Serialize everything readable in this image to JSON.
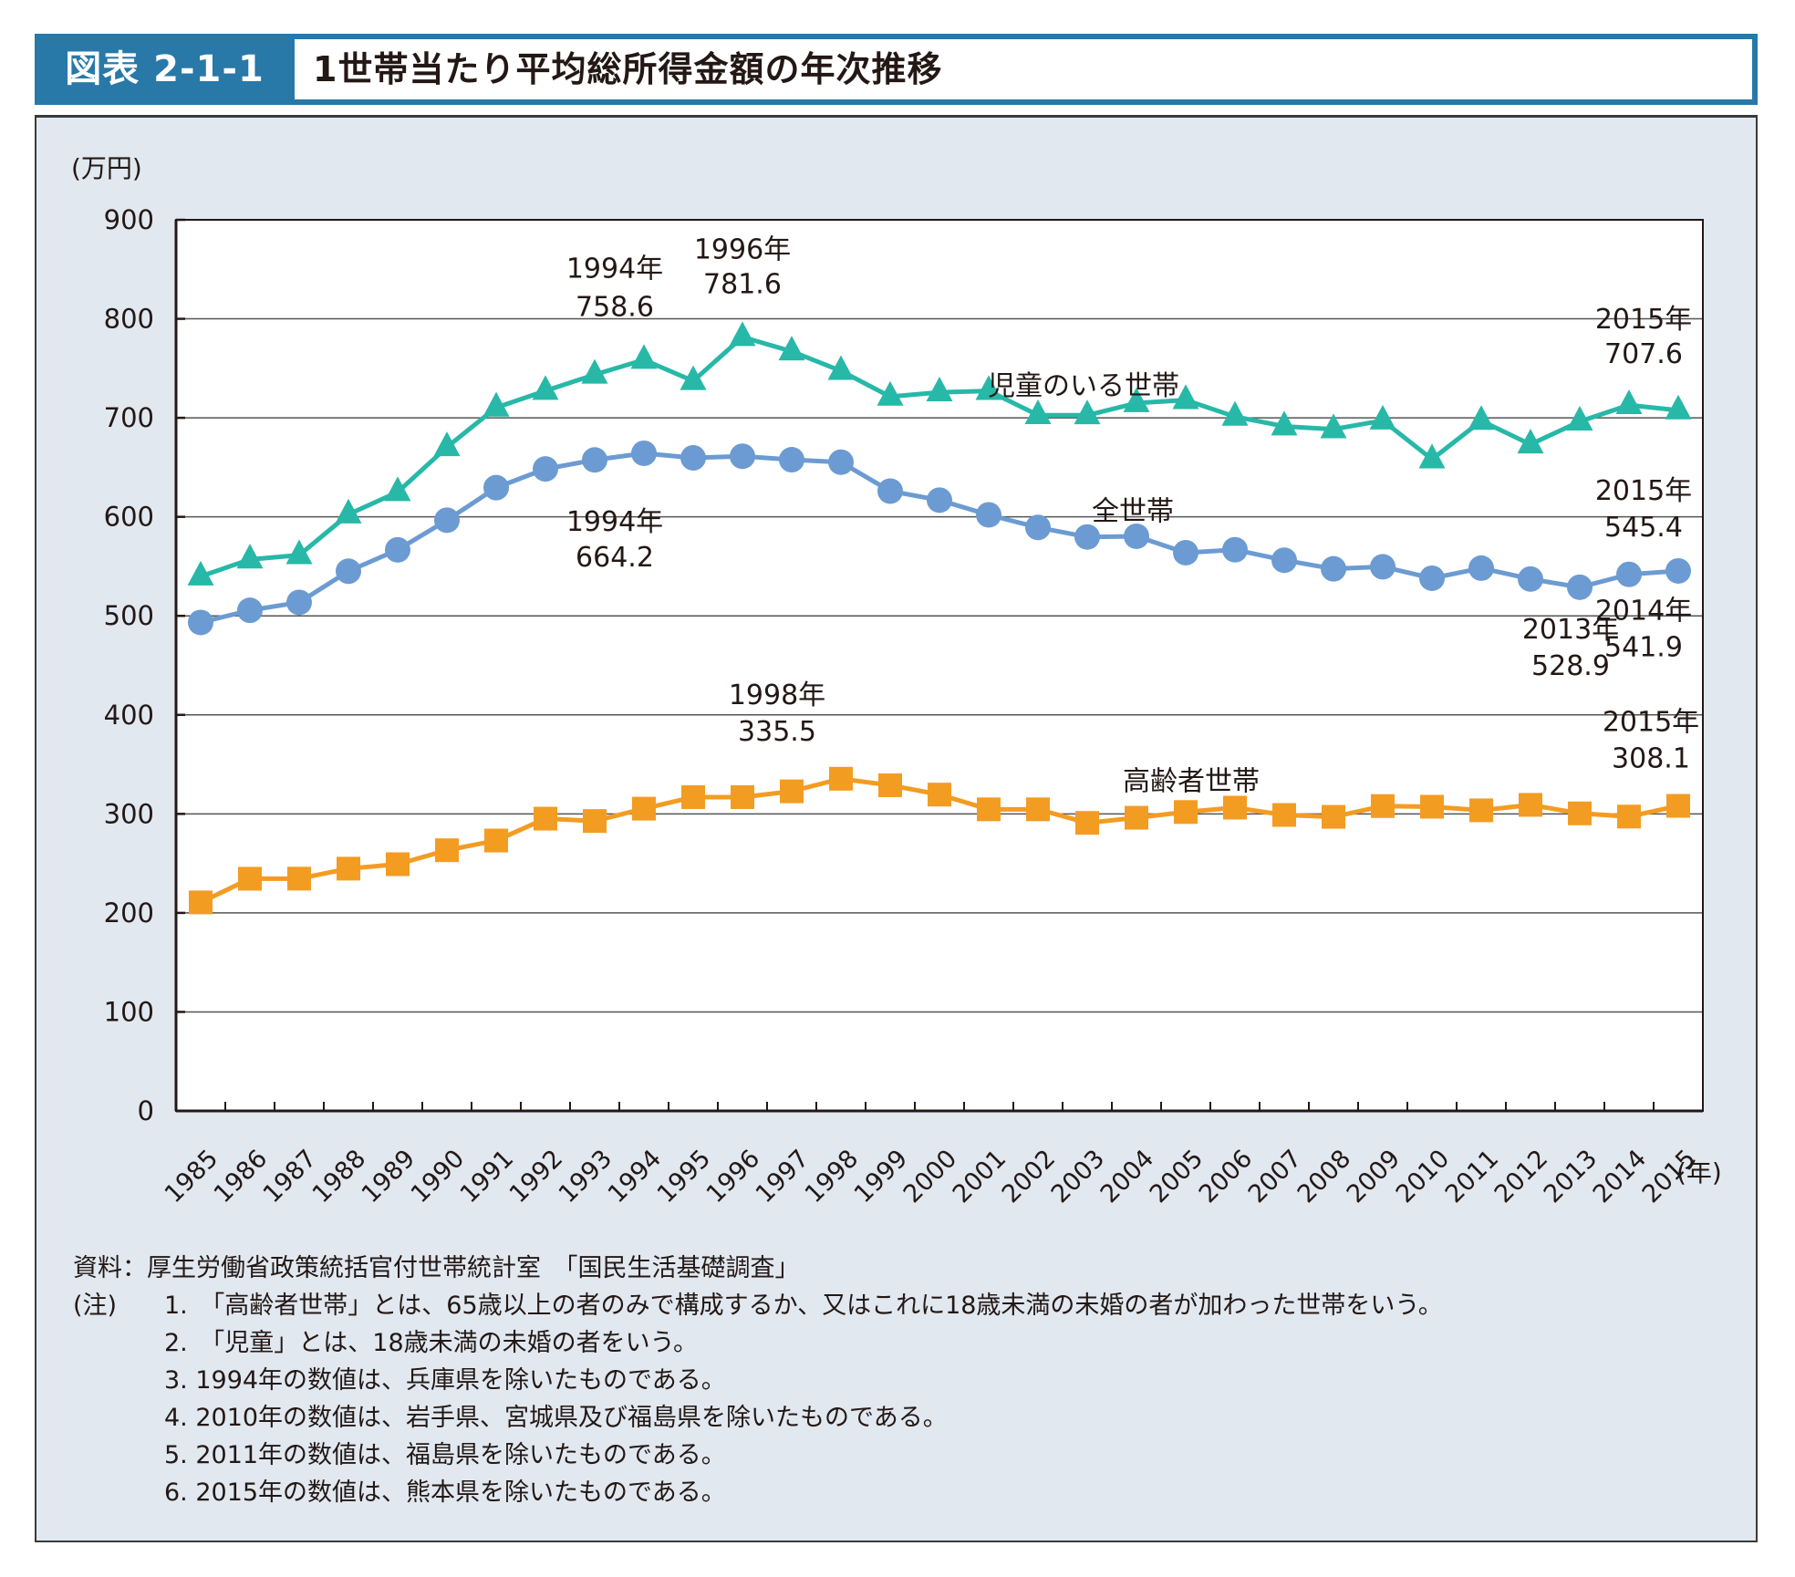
{
  "header": {
    "figure_label": "図表 2-1-1",
    "title": "1世帯当たり平均総所得金額の年次推移"
  },
  "chart_data": {
    "type": "line",
    "title": "1世帯当たり平均総所得金額の年次推移",
    "ylabel": "(万円)",
    "xlabel": "(年)",
    "ylim": [
      0,
      900
    ],
    "yticks": [
      0,
      100,
      200,
      300,
      400,
      500,
      600,
      700,
      800,
      900
    ],
    "grid": true,
    "x": [
      "1985",
      "1986",
      "1987",
      "1988",
      "1989",
      "1990",
      "1991",
      "1992",
      "1993",
      "1994",
      "1995",
      "1996",
      "1997",
      "1998",
      "1999",
      "2000",
      "2001",
      "2002",
      "2003",
      "2004",
      "2005",
      "2006",
      "2007",
      "2008",
      "2009",
      "2010",
      "2011",
      "2012",
      "2013",
      "2014",
      "2015"
    ],
    "series": [
      {
        "name": "児童のいる世帯",
        "marker": "triangle",
        "color": "#27b8a8",
        "values": [
          539.8,
          557.0,
          561.3,
          602.5,
          625.0,
          670.4,
          710.4,
          727.3,
          743.6,
          758.6,
          737.2,
          781.6,
          767.1,
          747.4,
          721.4,
          725.8,
          727.2,
          702.7,
          702.6,
          714.9,
          718.0,
          701.2,
          691.4,
          688.5,
          697.3,
          658.1,
          697.0,
          673.2,
          696.3,
          712.9,
          707.6
        ]
      },
      {
        "name": "全世帯",
        "marker": "circle",
        "color": "#6b9bd2",
        "values": [
          493.3,
          505.6,
          513.6,
          545.1,
          566.7,
          596.6,
          629.5,
          648.4,
          657.5,
          664.2,
          659.6,
          661.2,
          657.7,
          655.2,
          626.0,
          616.9,
          602.0,
          589.3,
          579.7,
          580.4,
          563.8,
          566.8,
          556.2,
          547.5,
          549.6,
          538.0,
          548.2,
          537.2,
          528.9,
          541.9,
          545.4
        ]
      },
      {
        "name": "高齢者世帯",
        "marker": "square",
        "color": "#f39c22",
        "values": [
          210.6,
          234.5,
          234.6,
          244.7,
          249.2,
          263.3,
          273.1,
          295.2,
          292.8,
          305.3,
          316.9,
          316.9,
          322.8,
          335.5,
          328.9,
          319.5,
          304.6,
          304.6,
          290.9,
          296.1,
          301.9,
          306.3,
          298.9,
          297.0,
          307.9,
          307.2,
          303.6,
          309.1,
          300.5,
          297.3,
          308.1
        ]
      }
    ],
    "series_labels": [
      {
        "series": "児童のいる世帯",
        "text": "児童のいる世帯",
        "near_year": "2002"
      },
      {
        "series": "全世帯",
        "text": "全世帯",
        "near_year": "2003"
      },
      {
        "series": "高齢者世帯",
        "text": "高齢者世帯",
        "near_year": "2004"
      }
    ],
    "annotations": [
      {
        "series": "児童のいる世帯",
        "year": "1994",
        "line1": "1994年",
        "line2": "758.6"
      },
      {
        "series": "児童のいる世帯",
        "year": "1996",
        "line1": "1996年",
        "line2": "781.6"
      },
      {
        "series": "児童のいる世帯",
        "year": "2015",
        "line1": "2015年",
        "line2": "707.6"
      },
      {
        "series": "全世帯",
        "year": "1994",
        "line1": "1994年",
        "line2": "664.2"
      },
      {
        "series": "全世帯",
        "year": "2015",
        "line1": "2015年",
        "line2": "545.4"
      },
      {
        "series": "全世帯",
        "year": "2013",
        "line1": "2013年",
        "line2": "528.9"
      },
      {
        "series": "全世帯",
        "year": "2014",
        "line1": "2014年",
        "line2": "541.9"
      },
      {
        "series": "高齢者世帯",
        "year": "1998",
        "line1": "1998年",
        "line2": "335.5"
      },
      {
        "series": "高齢者世帯",
        "year": "2015",
        "line1": "2015年",
        "line2": "308.1"
      }
    ]
  },
  "notes": {
    "source": "資料：厚生労働省政策統括官付世帯統計室　「国民生活基礎調査」",
    "note_lead": "(注)",
    "items": [
      "1.　「高齢者世帯」とは、65歳以上の者のみで構成するか、又はこれに18歳未満の未婚の者が加わった世帯をいう。",
      "2.　「児童」とは、18歳未満の未婚の者をいう。",
      "3. 1994年の数値は、兵庫県を除いたものである。",
      "4. 2010年の数値は、岩手県、宮城県及び福島県を除いたものである。",
      "5. 2011年の数値は、福島県を除いたものである。",
      "6. 2015年の数値は、熊本県を除いたものである。"
    ]
  }
}
